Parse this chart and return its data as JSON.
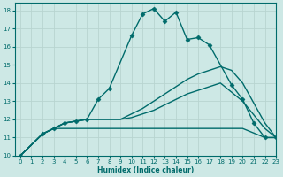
{
  "xlabel": "Humidex (Indice chaleur)",
  "ylabel": "",
  "xlim": [
    -0.5,
    23
  ],
  "ylim": [
    10,
    18.4
  ],
  "yticks": [
    10,
    11,
    12,
    13,
    14,
    15,
    16,
    17,
    18
  ],
  "xticks": [
    0,
    1,
    2,
    3,
    4,
    5,
    6,
    7,
    8,
    9,
    10,
    11,
    12,
    13,
    14,
    15,
    16,
    17,
    18,
    19,
    20,
    21,
    22,
    23
  ],
  "background_color": "#cde8e5",
  "grid_color": "#b8d4d0",
  "line_color": "#006b6b",
  "series": [
    {
      "x": [
        0,
        2,
        3,
        4,
        5,
        6,
        7,
        8,
        10,
        11,
        12,
        13,
        14,
        15,
        16,
        17,
        19,
        20,
        21,
        22,
        23
      ],
      "y": [
        10,
        11.2,
        11.5,
        11.8,
        11.9,
        12.0,
        13.1,
        13.7,
        16.6,
        17.8,
        18.1,
        17.4,
        17.9,
        16.4,
        16.5,
        16.1,
        13.9,
        13.1,
        11.8,
        11.0,
        11.0
      ],
      "marker": "D",
      "markersize": 2.5,
      "linewidth": 1.0
    },
    {
      "x": [
        0,
        2,
        3,
        4,
        5,
        6,
        7,
        8,
        9,
        10,
        11,
        12,
        13,
        14,
        15,
        16,
        17,
        18,
        19,
        20,
        22,
        23
      ],
      "y": [
        10,
        11.2,
        11.5,
        11.8,
        11.9,
        12.0,
        12.0,
        12.0,
        12.0,
        12.3,
        12.6,
        13.0,
        13.4,
        13.8,
        14.2,
        14.5,
        14.7,
        14.9,
        14.7,
        14.0,
        11.8,
        11.0
      ],
      "marker": "D",
      "markersize": 0,
      "linewidth": 1.0
    },
    {
      "x": [
        0,
        2,
        3,
        4,
        5,
        6,
        7,
        8,
        9,
        10,
        11,
        12,
        13,
        14,
        15,
        16,
        17,
        18,
        19,
        20,
        22,
        23
      ],
      "y": [
        10,
        11.2,
        11.5,
        11.8,
        11.9,
        12.0,
        12.0,
        12.0,
        12.0,
        12.1,
        12.3,
        12.5,
        12.8,
        13.1,
        13.4,
        13.6,
        13.8,
        14.0,
        13.5,
        13.0,
        11.5,
        11.0
      ],
      "marker": "D",
      "markersize": 0,
      "linewidth": 1.0
    },
    {
      "x": [
        0,
        2,
        3,
        4,
        5,
        6,
        7,
        8,
        9,
        10,
        11,
        12,
        13,
        14,
        15,
        16,
        17,
        18,
        19,
        20,
        22,
        23
      ],
      "y": [
        10,
        11.2,
        11.5,
        11.5,
        11.5,
        11.5,
        11.5,
        11.5,
        11.5,
        11.5,
        11.5,
        11.5,
        11.5,
        11.5,
        11.5,
        11.5,
        11.5,
        11.5,
        11.5,
        11.5,
        11.0,
        11.0
      ],
      "marker": "D",
      "markersize": 0,
      "linewidth": 1.0
    }
  ]
}
